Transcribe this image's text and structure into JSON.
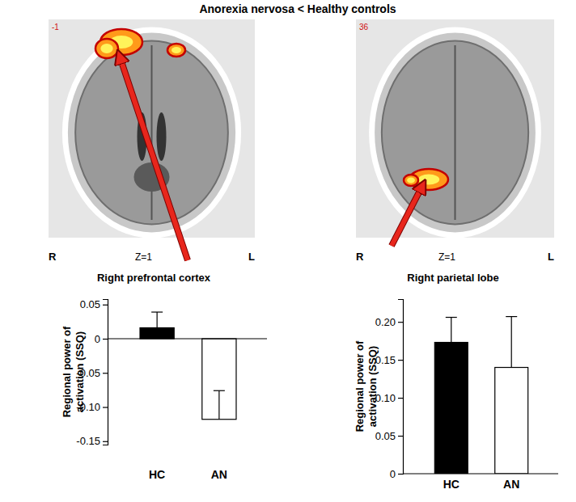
{
  "title": "Anorexia nervosa < Healthy controls",
  "images": [
    {
      "slice": "-1",
      "left": "R",
      "center": "Z=1",
      "right": "L",
      "caption": "Right prefrontal cortex"
    },
    {
      "slice": "36",
      "left": "R",
      "center": "Z=1",
      "right": "L",
      "caption": "Right parietal lobe"
    }
  ],
  "chart_data": [
    {
      "type": "bar",
      "y_label": "Regional power of activation (SSQ)",
      "categories": [
        "HC",
        "AN"
      ],
      "values": [
        0.016,
        -0.118
      ],
      "errors": [
        0.023,
        0.042
      ],
      "colors": [
        "#000000",
        "#ffffff"
      ],
      "ylim": [
        -0.155,
        0.058
      ],
      "yticks": [
        0.05,
        0,
        -0.05,
        {
          "value": -0.1,
          "label": "-0.10"
        },
        -0.15
      ]
    },
    {
      "type": "bar",
      "y_label": "Regional power of activation (SSQ)",
      "categories": [
        "HC",
        "AN"
      ],
      "values": [
        0.173,
        0.14
      ],
      "errors": [
        0.033,
        0.067
      ],
      "colors": [
        "#000000",
        "#ffffff"
      ],
      "ylim": [
        0,
        0.23
      ],
      "yticks": [
        0,
        0.05,
        {
          "value": 0.1,
          "label": "0.10"
        },
        0.15,
        {
          "value": 0.2,
          "label": "0.20"
        }
      ]
    }
  ]
}
